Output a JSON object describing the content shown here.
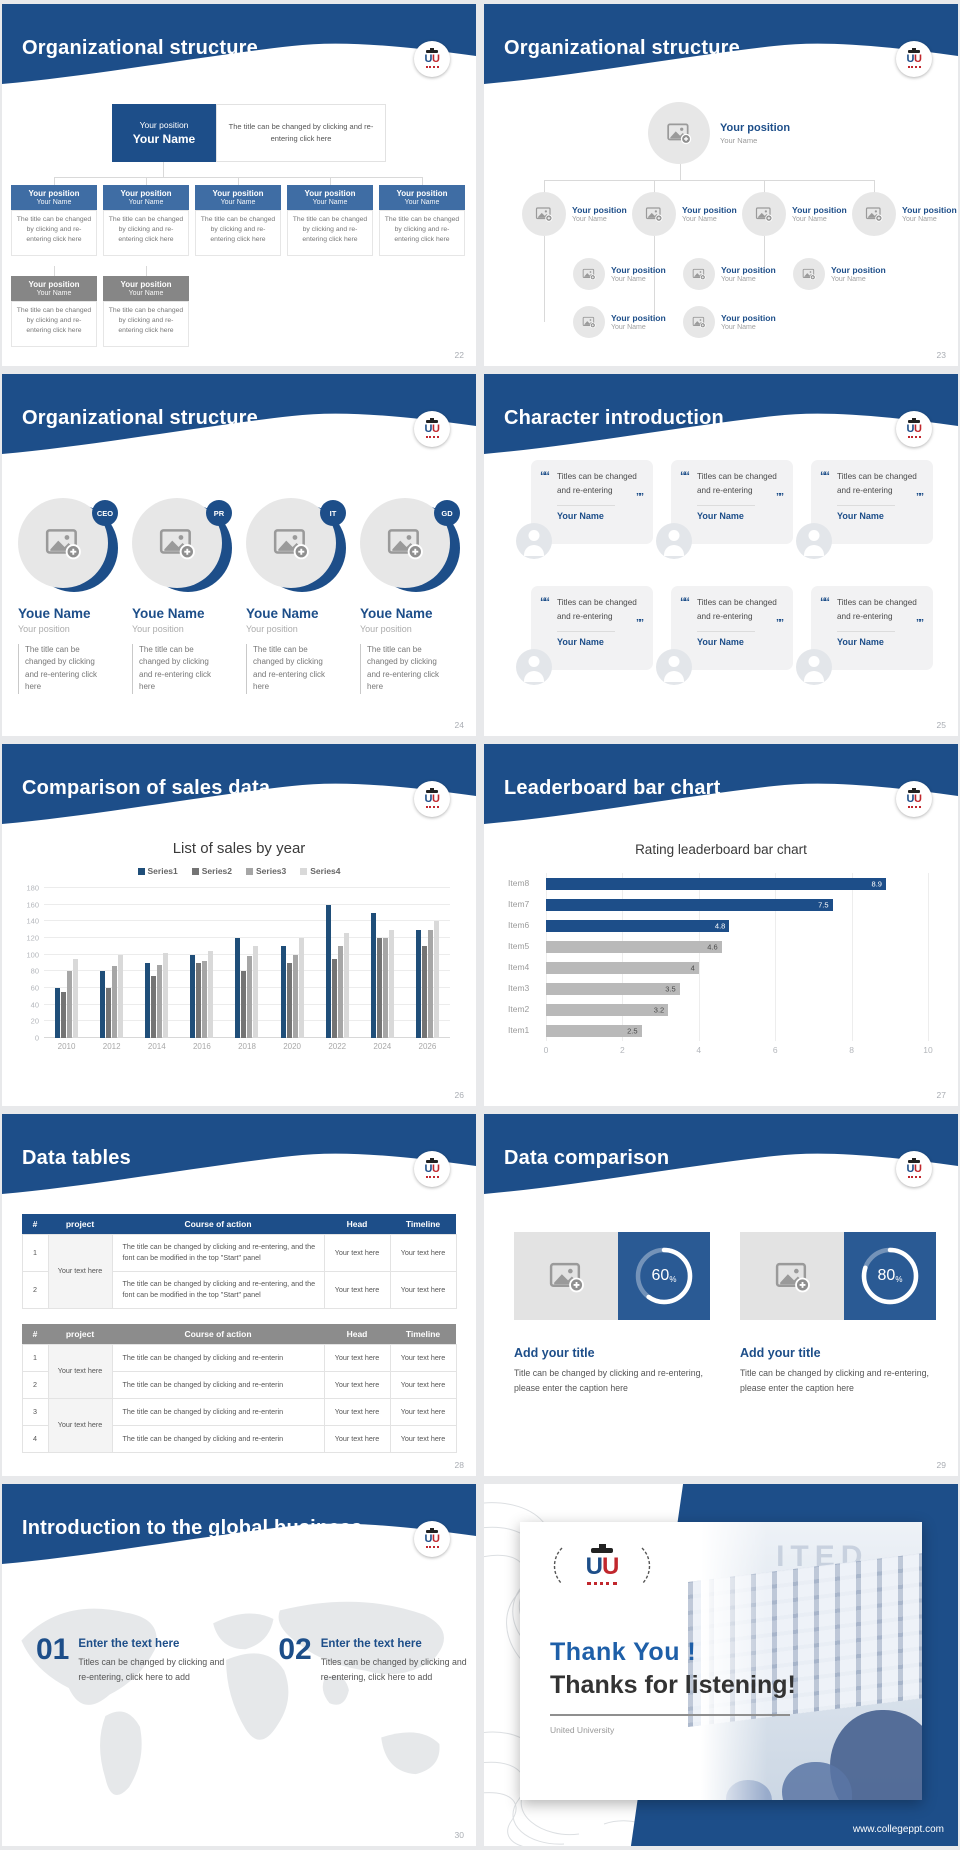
{
  "global": {
    "header_blue": "#1d4e89",
    "accent_blue": "#3f6da4",
    "gray_box": "#868686",
    "logo_u1": "U",
    "logo_u2": "U"
  },
  "s22": {
    "title": "Organizational structure",
    "page": "22",
    "root_position": "Your position",
    "root_name": "Your Name",
    "root_note": "The title can be changed by clicking and re-entering click here",
    "child_position": "Your position",
    "child_name": "Your Name",
    "child_note": "The title can be changed by clicking and re-entering click here"
  },
  "s23": {
    "title": "Organizational structure",
    "page": "23",
    "position": "Your position",
    "name": "Your Name"
  },
  "s24": {
    "title": "Organizational structure",
    "page": "24",
    "badges": [
      "CEO",
      "PR",
      "IT",
      "GD"
    ],
    "name": "Youe Name",
    "position": "Your position",
    "note": "The title can be changed by clicking and re-entering click here"
  },
  "s25": {
    "title": "Character introduction",
    "page": "25",
    "quote_open": "““",
    "quote_close": "””",
    "quote": "Titles can be changed and re-entering",
    "name": "Your Name"
  },
  "s26": {
    "title": "Comparison of sales data",
    "page": "26"
  },
  "s27": {
    "title": "Leaderboard bar chart",
    "page": "27"
  },
  "chart_data": [
    {
      "type": "bar",
      "title": "List of sales by year",
      "categories": [
        "2010",
        "2012",
        "2014",
        "2016",
        "2018",
        "2020",
        "2022",
        "2024",
        "2026"
      ],
      "series": [
        {
          "name": "Series1",
          "color": "#1f4e79",
          "values": [
            60,
            80,
            90,
            100,
            120,
            110,
            160,
            150,
            130
          ]
        },
        {
          "name": "Series2",
          "color": "#747474",
          "values": [
            55,
            60,
            75,
            90,
            80,
            90,
            95,
            120,
            110
          ]
        },
        {
          "name": "Series3",
          "color": "#a6a6a6",
          "values": [
            80,
            86,
            88,
            92,
            98,
            100,
            110,
            120,
            130
          ]
        },
        {
          "name": "Series4",
          "color": "#d9d9d9",
          "values": [
            95,
            100,
            102,
            105,
            110,
            120,
            126,
            130,
            140
          ]
        }
      ],
      "ylim": [
        0,
        180
      ],
      "ytick_step": 20,
      "xlabel": "",
      "ylabel": "",
      "grid": true,
      "legend_position": "top"
    },
    {
      "type": "bar-horizontal",
      "title": "Rating leaderboard bar chart",
      "categories": [
        "Item8",
        "Item7",
        "Item6",
        "Item5",
        "Item4",
        "Item3",
        "Item2",
        "Item1"
      ],
      "values": [
        8.9,
        7.5,
        4.8,
        4.6,
        4,
        3.5,
        3.2,
        2.5
      ],
      "colors": [
        "#1d4e89",
        "#1d4e89",
        "#1d4e89",
        "#b9b9b9",
        "#b9b9b9",
        "#b9b9b9",
        "#b9b9b9",
        "#b9b9b9"
      ],
      "xlim": [
        0,
        10
      ],
      "xticks": [
        0,
        2,
        4,
        6,
        8,
        10
      ],
      "grid": true
    }
  ],
  "s28": {
    "title": "Data tables",
    "page": "28",
    "table1": {
      "header": [
        "#",
        "project",
        "Course of action",
        "Head",
        "Timeline"
      ],
      "rows": [
        {
          "n": "1",
          "proj": "Your text here",
          "span": 2,
          "course": "The title can be changed by clicking and re-entering, and the font can be modified in the top \"Start\" panel",
          "head": "Your text here",
          "time": "Your text here"
        },
        {
          "n": "2",
          "course": "The title can be changed by clicking and re-entering, and the font can be modified in the top \"Start\" panel",
          "head": "Your text here",
          "time": "Your text here"
        }
      ]
    },
    "table2": {
      "header": [
        "#",
        "project",
        "Course of action",
        "Head",
        "Timeline"
      ],
      "rows": [
        {
          "n": "1",
          "proj": "Your text here",
          "span": 2,
          "course": "The title can be changed by clicking and re-enterin",
          "head": "Your text here",
          "time": "Your text here"
        },
        {
          "n": "2",
          "course": "The title can be changed by clicking and re-enterin",
          "head": "Your text here",
          "time": "Your text here"
        },
        {
          "n": "3",
          "proj": "Your text here",
          "span": 2,
          "course": "The title can be changed by clicking and re-enterin",
          "head": "Your text here",
          "time": "Your text here"
        },
        {
          "n": "4",
          "course": "The title can be changed by clicking and re-enterin",
          "head": "Your text here",
          "time": "Your text here"
        }
      ]
    }
  },
  "s29": {
    "title": "Data comparison",
    "page": "29",
    "pct_sign": "%",
    "cards": [
      {
        "pct": 60,
        "pct_label": "60",
        "card_title": "Add your title",
        "caption": "Title can be changed by clicking and re-entering, please enter the caption here"
      },
      {
        "pct": 80,
        "pct_label": "80",
        "card_title": "Add your title",
        "caption": "Title can be changed by clicking and re-entering, please enter the caption here"
      }
    ]
  },
  "s30": {
    "title": "Introduction to the global business",
    "page": "30",
    "items": [
      {
        "num": "01",
        "item_title": "Enter the text here",
        "caption": "Titles can be changed by clicking and re-entering, click here to add"
      },
      {
        "num": "02",
        "item_title": "Enter the text here",
        "caption": "Titles can be changed by clicking and re-entering, click here to add"
      }
    ]
  },
  "s31": {
    "line1": "Thank You !",
    "line2": "Thanks for listening!",
    "org": "United University",
    "url": "www.collegeppt.com",
    "ghost": "ITED"
  }
}
